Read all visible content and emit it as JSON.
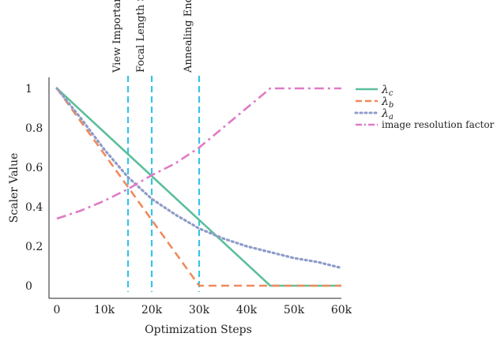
{
  "chart_data": {
    "type": "line",
    "xlabel": "Optimization Steps",
    "ylabel": "Scaler Value",
    "xlim": [
      0,
      60000
    ],
    "ylim": [
      0,
      1
    ],
    "x_ticks": [
      {
        "value": 0,
        "label": "0"
      },
      {
        "value": 10000,
        "label": "10k"
      },
      {
        "value": 20000,
        "label": "20k"
      },
      {
        "value": 30000,
        "label": "30k"
      },
      {
        "value": 40000,
        "label": "40k"
      },
      {
        "value": 50000,
        "label": "50k"
      },
      {
        "value": 60000,
        "label": "60k"
      }
    ],
    "y_ticks": [
      {
        "value": 0,
        "label": "0"
      },
      {
        "value": 0.2,
        "label": "0.2"
      },
      {
        "value": 0.4,
        "label": "0.4"
      },
      {
        "value": 0.6,
        "label": "0.6"
      },
      {
        "value": 0.8,
        "label": "0.8"
      },
      {
        "value": 1,
        "label": "1"
      }
    ],
    "grid": false,
    "legend_position": "top-right",
    "series": [
      {
        "name": "λc",
        "base": "λ",
        "sub": "c",
        "style": "solid",
        "color": "#5cbf9b",
        "x": [
          0,
          45000,
          60000
        ],
        "y": [
          1.0,
          0.0,
          0.0
        ]
      },
      {
        "name": "λb",
        "base": "λ",
        "sub": "b",
        "style": "dashed",
        "color": "#f08a5d",
        "x": [
          0,
          30000,
          60000
        ],
        "y": [
          1.0,
          0.0,
          0.0
        ]
      },
      {
        "name": "λa",
        "base": "λ",
        "sub": "a",
        "style": "dotted",
        "color": "#8e9cc9",
        "x": [
          0,
          5000,
          10000,
          15000,
          20000,
          25000,
          30000,
          35000,
          40000,
          45000,
          50000,
          55000,
          60000
        ],
        "y": [
          1.0,
          0.85,
          0.69,
          0.55,
          0.44,
          0.36,
          0.29,
          0.24,
          0.2,
          0.17,
          0.14,
          0.12,
          0.09
        ]
      },
      {
        "name": "image resolution factor",
        "style": "dashdot",
        "color": "#e07ac5",
        "x": [
          0,
          5000,
          10000,
          15000,
          20000,
          25000,
          30000,
          35000,
          40000,
          45000,
          50000,
          55000,
          60000
        ],
        "y": [
          0.34,
          0.38,
          0.43,
          0.49,
          0.56,
          0.62,
          0.7,
          0.8,
          0.9,
          1.0,
          1.0,
          1.0,
          1.0
        ]
      }
    ],
    "vlines": [
      {
        "x": 15000,
        "label": "View Importance Start",
        "color": "#36c3e8"
      },
      {
        "x": 20000,
        "label": "Focal Length Start",
        "color": "#36c3e8"
      },
      {
        "x": 30000,
        "label": "Annealing End",
        "color": "#36c3e8"
      }
    ]
  }
}
